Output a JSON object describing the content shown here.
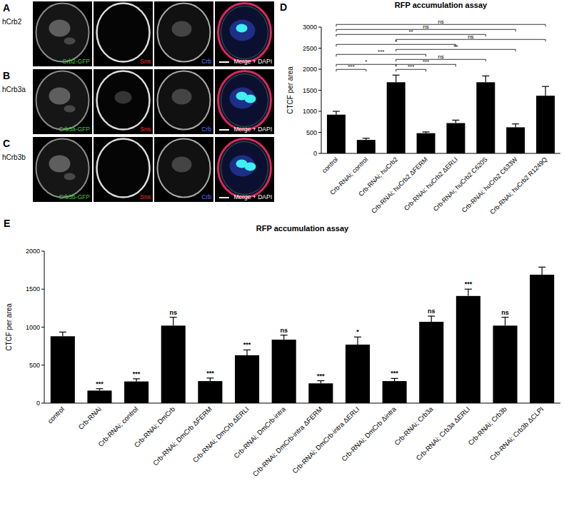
{
  "figure_panels": [
    {
      "letter": "A",
      "label": "hCrb2",
      "channels": [
        {
          "text": "Crb2-GFP",
          "color": "#3ecf3e"
        },
        {
          "text": "Sns",
          "color": "#ff2a2a"
        },
        {
          "text": "Crb",
          "color": "#5a70ff"
        },
        {
          "text": "Merge + DAPI",
          "color": "#ffffff"
        }
      ]
    },
    {
      "letter": "B",
      "label": "hCrb3a",
      "channels": [
        {
          "text": "Crb3a-GFP",
          "color": "#3ecf3e"
        },
        {
          "text": "Sns",
          "color": "#ff2a2a"
        },
        {
          "text": "Crb",
          "color": "#5a70ff"
        },
        {
          "text": "Merge + DAPI",
          "color": "#ffffff"
        }
      ]
    },
    {
      "letter": "C",
      "label": "hCrb3b",
      "channels": [
        {
          "text": "Crb3b-GFP",
          "color": "#3ecf3e"
        },
        {
          "text": "Sns",
          "color": "#ff2a2a"
        },
        {
          "text": "Crb",
          "color": "#5a70ff"
        },
        {
          "text": "Merge + DAPI",
          "color": "#ffffff"
        }
      ]
    }
  ],
  "chart_data": [
    {
      "type": "bar",
      "panel_label": "D",
      "title": "RFP accumulation assay",
      "y_label": "CTCF per area",
      "categories": [
        "control",
        "Crb-RNAi; control",
        "Crb-RNAi; huCrb2",
        "Crb-RNAi; huCrb2 ΔFERM",
        "Crb-RNAi; huCrb2 ΔERLI",
        "Crb-RNAi; huCrb2 C620S",
        "Crb-RNAi; huCrb2 C633W",
        "Crb-RNAi; huCrb2 R1249Q"
      ],
      "values": [
        920,
        320,
        1690,
        480,
        720,
        1690,
        620,
        1370
      ],
      "errors": [
        80,
        40,
        170,
        30,
        70,
        150,
        80,
        220
      ],
      "color": "#000000",
      "ylim": [
        0,
        3000
      ],
      "yticks": [
        0,
        500,
        1000,
        1500,
        2000,
        2500,
        3000
      ],
      "comparisons": [
        {
          "from": 0,
          "to": 1,
          "label": "***"
        },
        {
          "from": 0,
          "to": 2,
          "label": "*"
        },
        {
          "from": 2,
          "to": 3,
          "label": "***"
        },
        {
          "from": 2,
          "to": 4,
          "label": "***"
        },
        {
          "from": 2,
          "to": 5,
          "label": "ns"
        },
        {
          "from": 2,
          "to": 6,
          "label": "**"
        },
        {
          "from": 2,
          "to": 7,
          "label": "ns"
        },
        {
          "from": 0,
          "to": 3,
          "label": "***"
        },
        {
          "from": 0,
          "to": 4,
          "label": "*"
        },
        {
          "from": 0,
          "to": 5,
          "label": "**"
        },
        {
          "from": 0,
          "to": 6,
          "label": "ns"
        },
        {
          "from": 0,
          "to": 7,
          "label": "ns"
        }
      ]
    },
    {
      "type": "bar",
      "panel_label": "E",
      "title": "RFP accumulation assay",
      "y_label": "CTCF per area",
      "categories": [
        "control",
        "Crb-RNAi",
        "Crb-RNAi; control",
        "Crb-RNAi; DmCrb",
        "Crb-RNAi; DmCrb ΔFERM",
        "Crb-RNAi; DmCrb ΔERLI",
        "Crb-RNAi; DmCrb-intra",
        "Crb-RNAi; DmCrb-intra ΔFERM",
        "Crb-RNAi; DmCrb-intra ΔERLI",
        "Crb-RNAi; DmCrb Δintra",
        "Crb-RNAi; Crb3a",
        "Crb-RNAi; Crb3a ΔERLI",
        "Crb-RNAi; Crb3b",
        "Crb-RNAi; Crb3b ΔCLPI"
      ],
      "values": [
        880,
        165,
        285,
        1020,
        290,
        630,
        835,
        260,
        770,
        290,
        1070,
        1410,
        1020,
        1690
      ],
      "errors": [
        55,
        25,
        35,
        110,
        40,
        70,
        60,
        35,
        100,
        35,
        75,
        90,
        110,
        100
      ],
      "color": "#000000",
      "ylim": [
        0,
        2000
      ],
      "yticks": [
        0,
        500,
        1000,
        1500,
        2000
      ],
      "significance": [
        null,
        "***",
        "***",
        "ns",
        "***",
        "***",
        "ns",
        "***",
        "*",
        "***",
        "ns",
        "***",
        "ns",
        null
      ]
    }
  ]
}
